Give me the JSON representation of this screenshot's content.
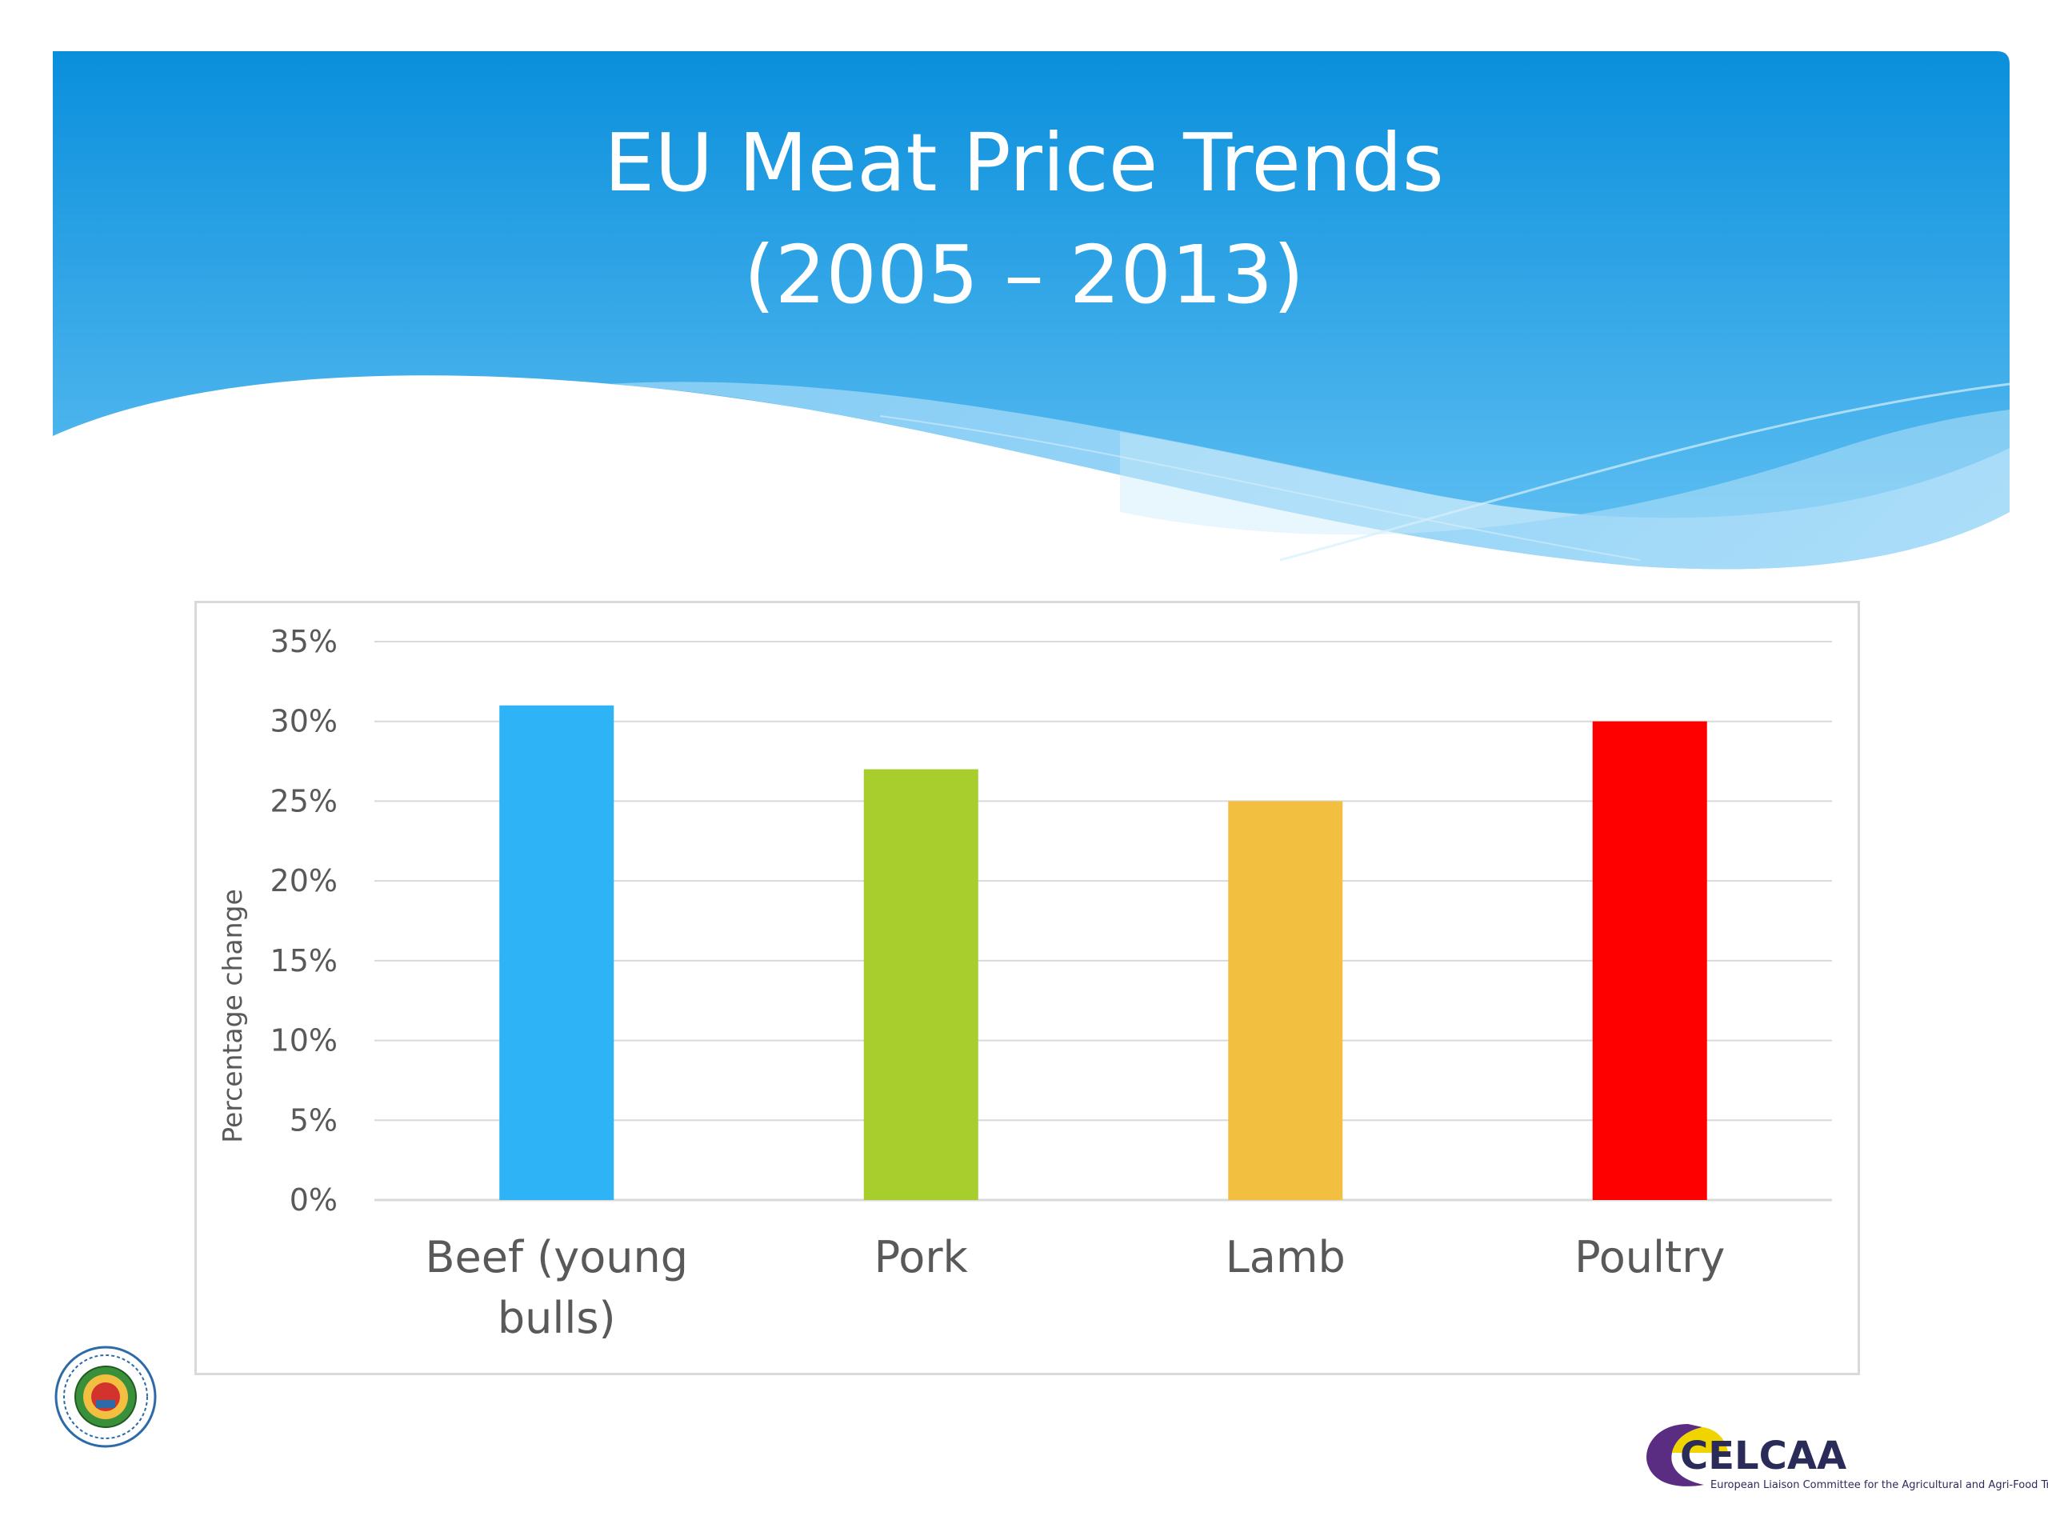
{
  "slide": {
    "title_line_1": "EU Meat Price Trends",
    "title_line_2": "(2005 – 2013)"
  },
  "colors": {
    "banner_top": "#0a8fdc",
    "banner_bottom": "#5fbdf2",
    "wave_light": "#9ad6f7",
    "grid": "#d9d9d9",
    "text": "#595959"
  },
  "chart_data": {
    "type": "bar",
    "categories": [
      "Beef (young bulls)",
      "Pork",
      "Lamb",
      "Poultry"
    ],
    "category_lines": [
      [
        "Beef (young",
        "bulls)"
      ],
      [
        "Pork"
      ],
      [
        "Lamb"
      ],
      [
        "Poultry"
      ]
    ],
    "values": [
      0.31,
      0.27,
      0.25,
      0.3
    ],
    "bar_colors": [
      "#2fb3f7",
      "#a7ce2c",
      "#f2bf40",
      "#ff0000"
    ],
    "ylabel": "Percentage change",
    "ylim": [
      0,
      0.35
    ],
    "yticks": [
      0,
      0.05,
      0.1,
      0.15,
      0.2,
      0.25,
      0.3,
      0.35
    ],
    "ytick_labels": [
      "0%",
      "5%",
      "10%",
      "15%",
      "20%",
      "25%",
      "30%",
      "35%"
    ],
    "grid": true,
    "legend": "none"
  },
  "logos": {
    "left_logo_icon": "meat-trade-association-seal",
    "right_logo_name": "CELCAA",
    "right_logo_subtitle": "European Liaison Committee for the Agricultural and Agri-Food Trade"
  }
}
